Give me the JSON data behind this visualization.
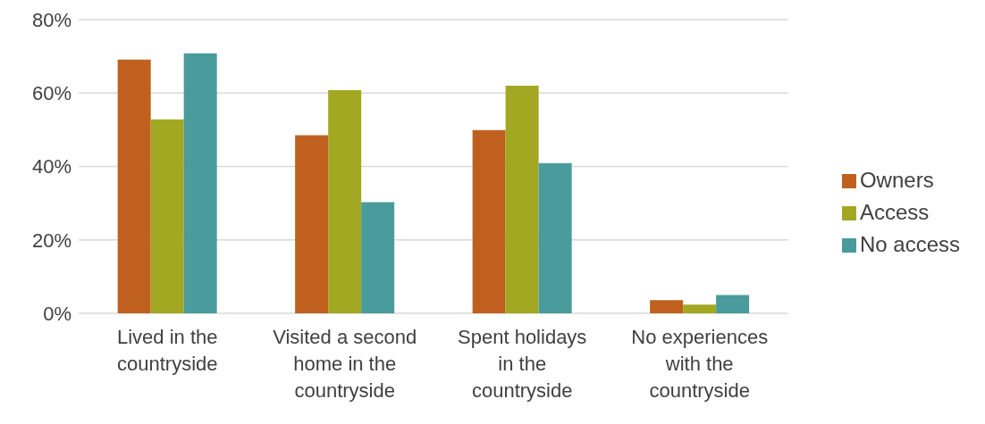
{
  "chart_data": {
    "type": "bar",
    "categories": [
      "Lived in the countryside",
      "Visited a second home in the countryside",
      "Spent holidays in the countryside",
      "No experiences with the countryside"
    ],
    "series": [
      {
        "name": "Owners",
        "color": "#c0601f",
        "values": [
          69.1,
          48.5,
          49.9,
          3.6
        ]
      },
      {
        "name": "Access",
        "color": "#a2a822",
        "values": [
          52.8,
          60.8,
          62,
          2.4
        ]
      },
      {
        "name": "No access",
        "color": "#4a9b9b",
        "values": [
          70.8,
          30.3,
          40.9,
          5
        ]
      }
    ],
    "ylim": [
      0,
      80
    ],
    "yticks": [
      {
        "value": 0,
        "label": "0%"
      },
      {
        "value": 20,
        "label": "20%"
      },
      {
        "value": 40,
        "label": "40%"
      },
      {
        "value": 60,
        "label": "60%"
      },
      {
        "value": 80,
        "label": "80%"
      }
    ],
    "grid": "y",
    "legend": "right"
  }
}
